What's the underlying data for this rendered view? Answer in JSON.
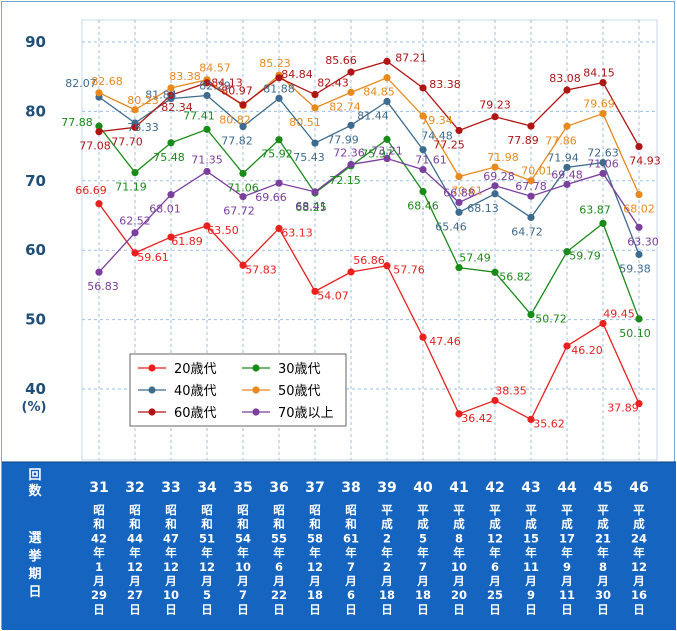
{
  "chart_data": {
    "type": "line",
    "title": "",
    "xlabel": "",
    "ylabel": "(%)",
    "ylim": [
      36,
      92
    ],
    "yticks": [
      40,
      50,
      60,
      70,
      80,
      90
    ],
    "grid": true,
    "legend_position": "lower-left-inside",
    "categories": [
      "31",
      "32",
      "33",
      "34",
      "35",
      "36",
      "37",
      "38",
      "39",
      "40",
      "41",
      "42",
      "43",
      "44",
      "45",
      "46"
    ],
    "footer_label_session": "回数",
    "footer_label_date": "選挙期日",
    "dates": [
      "昭和42年1月29日",
      "昭和44年12月27日",
      "昭和47年12月10日",
      "昭和51年12月5日",
      "昭和54年10月7日",
      "昭和55年6月22日",
      "昭和58年12月18日",
      "昭和61年7月6日",
      "平成2年2月18日",
      "平成5年7月18日",
      "平成8年10月20日",
      "平成12年6月25日",
      "平成15年11月9日",
      "平成17年9月11日",
      "平成21年8月30日",
      "平成24年12月16日"
    ],
    "series": [
      {
        "name": "20歳代",
        "color": "#e8201e",
        "values": [
          66.69,
          59.61,
          61.89,
          63.5,
          57.83,
          63.13,
          54.07,
          56.86,
          57.76,
          47.46,
          36.42,
          38.35,
          35.62,
          46.2,
          49.45,
          37.89
        ],
        "labels": [
          "66.69",
          "59.61",
          "61.89",
          "63.50",
          "57.83",
          "63.13",
          "54.07",
          "56.86",
          "57.76",
          "47.46",
          "36.42",
          "38.35",
          "35.62",
          "46.20",
          "49.45",
          "37.89"
        ]
      },
      {
        "name": "30歳代",
        "color": "#1a8a1a",
        "values": [
          77.88,
          71.19,
          75.48,
          77.41,
          71.06,
          75.92,
          68.25,
          72.15,
          75.97,
          68.46,
          57.49,
          56.82,
          50.72,
          59.79,
          63.87,
          50.1
        ],
        "labels": [
          "77.88",
          "71.19",
          "75.48",
          "77.41",
          "71.06",
          "75.92",
          "68.25",
          "72.15",
          "75.97",
          "68.46",
          "57.49",
          "56.82",
          "50.72",
          "59.79",
          "63.87",
          "50.10"
        ]
      },
      {
        "name": "40歳代",
        "color": "#3e6b8e",
        "values": [
          82.07,
          78.33,
          81.84,
          82.29,
          77.82,
          81.88,
          75.43,
          77.99,
          81.44,
          74.48,
          65.46,
          68.13,
          64.72,
          71.94,
          72.63,
          59.38
        ],
        "labels": [
          "82.07",
          "78.33",
          "81.84",
          "82.29",
          "77.82",
          "81.88",
          "75.43",
          "77.99",
          "81.44",
          "74.48",
          "65.46",
          "68.13",
          "64.72",
          "71.94",
          "72.63",
          "59.38"
        ]
      },
      {
        "name": "50歳代",
        "color": "#e8891e",
        "values": [
          82.68,
          80.23,
          83.38,
          84.57,
          80.82,
          85.23,
          80.51,
          82.74,
          84.85,
          79.34,
          70.61,
          71.98,
          70.01,
          77.86,
          79.69,
          68.02
        ],
        "labels": [
          "82.68",
          "80.23",
          "83.38",
          "84.57",
          "80.82",
          "85.23",
          "80.51",
          "82.74",
          "84.85",
          "79.34",
          "70.61",
          "71.98",
          "70.01",
          "77.86",
          "79.69",
          "68.02"
        ]
      },
      {
        "name": "60歳代",
        "color": "#b01515",
        "values": [
          77.08,
          77.7,
          82.34,
          84.13,
          80.97,
          84.84,
          82.43,
          85.66,
          87.21,
          83.38,
          77.25,
          79.23,
          77.89,
          83.08,
          84.15,
          74.93
        ],
        "labels": [
          "77.08",
          "77.70",
          "82.34",
          "84.13",
          "80.97",
          "84.84",
          "82.43",
          "85.66",
          "87.21",
          "83.38",
          "77.25",
          "79.23",
          "77.89",
          "83.08",
          "84.15",
          "74.93"
        ]
      },
      {
        "name": "70歳以上",
        "color": "#7b3f9e",
        "values": [
          56.83,
          62.52,
          68.01,
          71.35,
          67.72,
          69.66,
          68.41,
          72.36,
          73.21,
          71.61,
          66.88,
          69.28,
          67.78,
          69.48,
          71.06,
          63.3
        ],
        "labels": [
          "56.83",
          "62.52",
          "68.01",
          "71.35",
          "67.72",
          "69.66",
          "68.41",
          "72.36",
          "73.21",
          "71.61",
          "66.88",
          "69.28",
          "67.78",
          "69.48",
          "71.06",
          "63.30"
        ]
      }
    ]
  }
}
